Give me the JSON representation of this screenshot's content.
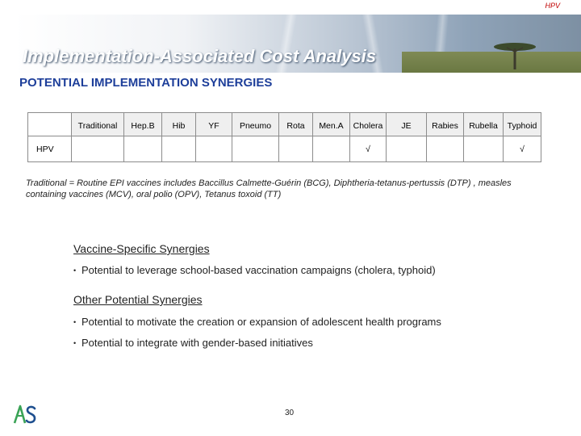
{
  "header_tag": "HPV",
  "title": "Implementation-Associated Cost Analysis",
  "subtitle": "POTENTIAL IMPLEMENTATION SYNERGIES",
  "table": {
    "columns": [
      "Traditional",
      "Hep.B",
      "Hib",
      "YF",
      "Pneumo",
      "Rota",
      "Men.A",
      "Cholera",
      "JE",
      "Rabies",
      "Rubella",
      "Typhoid"
    ],
    "row_label": "HPV",
    "cells": [
      "",
      "",
      "",
      "",
      "",
      "",
      "",
      "√",
      "",
      "",
      "",
      "√"
    ]
  },
  "footnote": "Traditional = Routine EPI vaccines includes Baccillus Calmette-Guérin (BCG), Diphtheria-tetanus-pertussis (DTP) , measles containing vaccines (MCV), oral polio (OPV), Tetanus toxoid (TT)",
  "sections": [
    {
      "heading": "Vaccine-Specific Synergies",
      "bullets": [
        "Potential to leverage school-based vaccination campaigns (cholera, typhoid)"
      ]
    },
    {
      "heading": "Other Potential Synergies",
      "bullets": [
        "Potential to motivate the creation or expansion of adolescent health programs",
        "Potential to integrate with gender-based initiatives"
      ]
    }
  ],
  "bullet_glyph": "•",
  "logo_text": "AS",
  "page_number": "30",
  "colors": {
    "subtitle": "#1e3f9a",
    "header_tag": "#c00000",
    "logo_green": "#3aa356",
    "logo_blue": "#1e4f8f"
  }
}
